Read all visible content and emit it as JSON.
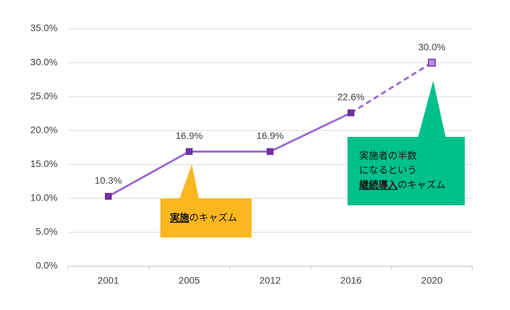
{
  "chart_data": {
    "type": "line",
    "categories": [
      "2001",
      "2005",
      "2012",
      "2016",
      "2020"
    ],
    "series": [
      {
        "color": "#9b6bd0",
        "marker_color": "#7030a0",
        "values": [
          10.3,
          16.9,
          16.9,
          22.6,
          30.0
        ],
        "value_labels": [
          "10.3%",
          "16.9%",
          "16.9%",
          "22.6%",
          "30.0%"
        ],
        "dashed_last_segment": true
      }
    ],
    "ylim": [
      0,
      35
    ],
    "yticks": [
      {
        "value": 0,
        "label": "0.0%"
      },
      {
        "value": 5,
        "label": "5.0%"
      },
      {
        "value": 10,
        "label": "10.0%"
      },
      {
        "value": 15,
        "label": "15.0%"
      },
      {
        "value": 20,
        "label": "20.0%"
      },
      {
        "value": 25,
        "label": "25.0%"
      },
      {
        "value": 30,
        "label": "30.0%"
      },
      {
        "value": 35,
        "label": "35.0%"
      }
    ],
    "grid": true,
    "annotations": [
      {
        "emphasis": "実施",
        "text": "のキャズム",
        "color": "#fbb71f"
      },
      {
        "lines": [
          "実施者の半数",
          "になるという"
        ],
        "emphasis": "継続導入",
        "text": "のキャズム",
        "color": "#00c08b"
      }
    ]
  }
}
